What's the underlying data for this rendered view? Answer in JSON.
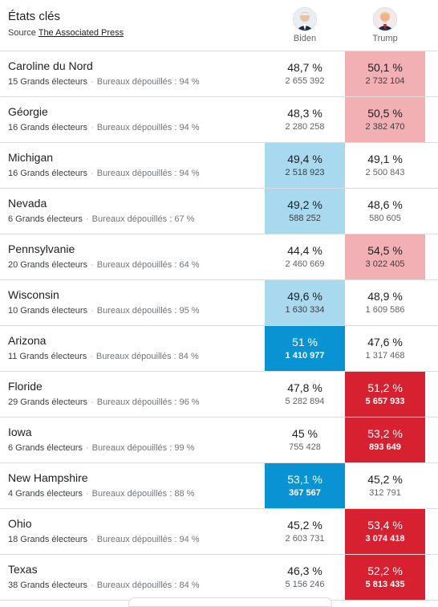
{
  "header": {
    "title": "États clés",
    "source_prefix": "Source",
    "source_link": "The Associated Press"
  },
  "candidates": {
    "biden": {
      "name": "Biden"
    },
    "trump": {
      "name": "Trump"
    }
  },
  "counted_label": "Bureaux dépouillés :",
  "states": [
    {
      "name": "Caroline du Nord",
      "electors": "15 Grands électeurs",
      "counted": "94 %",
      "biden_pct": "48,7 %",
      "biden_votes": "2 655 392",
      "biden_style": "none",
      "trump_pct": "50,1 %",
      "trump_votes": "2 732 104",
      "trump_style": "light-red"
    },
    {
      "name": "Géorgie",
      "electors": "16 Grands électeurs",
      "counted": "94 %",
      "biden_pct": "48,3 %",
      "biden_votes": "2 280 258",
      "biden_style": "none",
      "trump_pct": "50,5 %",
      "trump_votes": "2 382 470",
      "trump_style": "light-red"
    },
    {
      "name": "Michigan",
      "electors": "16 Grands électeurs",
      "counted": "94 %",
      "biden_pct": "49,4 %",
      "biden_votes": "2 518 923",
      "biden_style": "light-blue",
      "trump_pct": "49,1 %",
      "trump_votes": "2 500 843",
      "trump_style": "none"
    },
    {
      "name": "Nevada",
      "electors": "6 Grands électeurs",
      "counted": "67 %",
      "biden_pct": "49,2 %",
      "biden_votes": "588 252",
      "biden_style": "light-blue",
      "trump_pct": "48,6 %",
      "trump_votes": "580 605",
      "trump_style": "none"
    },
    {
      "name": "Pennsylvanie",
      "electors": "20 Grands électeurs",
      "counted": "64 %",
      "biden_pct": "44,4 %",
      "biden_votes": "2 460 669",
      "biden_style": "none",
      "trump_pct": "54,5 %",
      "trump_votes": "3 022 405",
      "trump_style": "light-red"
    },
    {
      "name": "Wisconsin",
      "electors": "10 Grands électeurs",
      "counted": "95 %",
      "biden_pct": "49,6 %",
      "biden_votes": "1 630 334",
      "biden_style": "light-blue",
      "trump_pct": "48,9 %",
      "trump_votes": "1 609 586",
      "trump_style": "none"
    },
    {
      "name": "Arizona",
      "electors": "11 Grands électeurs",
      "counted": "84 %",
      "biden_pct": "51 %",
      "biden_votes": "1 410 977",
      "biden_style": "dark-blue",
      "trump_pct": "47,6 %",
      "trump_votes": "1 317 468",
      "trump_style": "none"
    },
    {
      "name": "Floride",
      "electors": "29 Grands électeurs",
      "counted": "96 %",
      "biden_pct": "47,8 %",
      "biden_votes": "5 282 894",
      "biden_style": "none",
      "trump_pct": "51,2 %",
      "trump_votes": "5 657 933",
      "trump_style": "dark-red"
    },
    {
      "name": "Iowa",
      "electors": "6 Grands électeurs",
      "counted": "99 %",
      "biden_pct": "45 %",
      "biden_votes": "755 428",
      "biden_style": "none",
      "trump_pct": "53,2 %",
      "trump_votes": "893 649",
      "trump_style": "dark-red"
    },
    {
      "name": "New Hampshire",
      "electors": "4 Grands électeurs",
      "counted": "88 %",
      "biden_pct": "53,1 %",
      "biden_votes": "367 567",
      "biden_style": "dark-blue",
      "trump_pct": "45,2 %",
      "trump_votes": "312 791",
      "trump_style": "none"
    },
    {
      "name": "Ohio",
      "electors": "18 Grands électeurs",
      "counted": "94 %",
      "biden_pct": "45,2 %",
      "biden_votes": "2 603 731",
      "biden_style": "none",
      "trump_pct": "53,4 %",
      "trump_votes": "3 074 418",
      "trump_style": "dark-red"
    },
    {
      "name": "Texas",
      "electors": "38 Grands électeurs",
      "counted": "84 %",
      "biden_pct": "46,3 %",
      "biden_votes": "5 156 246",
      "biden_style": "none",
      "trump_pct": "52,2 %",
      "trump_votes": "5 813 435",
      "trump_style": "dark-red"
    }
  ]
}
